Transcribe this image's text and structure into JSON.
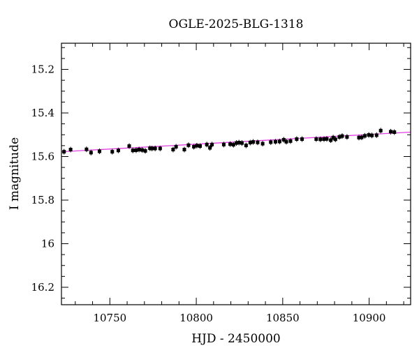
{
  "chart_data": {
    "type": "scatter",
    "title": "OGLE-2025-BLG-1318",
    "xlabel": "HJD - 2450000",
    "ylabel": "I magnitude",
    "xlim": [
      10722,
      10924
    ],
    "ylim": [
      16.28,
      15.08
    ],
    "y_inverted": true,
    "grid": false,
    "x_ticks": [
      10750,
      10800,
      10850,
      10900
    ],
    "x_tick_labels": [
      "10750",
      "10800",
      "10850",
      "10900"
    ],
    "y_ticks": [
      15.2,
      15.4,
      15.6,
      15.8,
      16,
      16.2
    ],
    "y_tick_labels": [
      "15.2",
      "15.4",
      "15.6",
      "15.8",
      "16",
      "16.2"
    ],
    "series": [
      {
        "kind": "points",
        "color": "#000000",
        "x": [
          10723.5,
          10727.3,
          10736.5,
          10739.1,
          10744.0,
          10751.4,
          10754.9,
          10761.2,
          10763.3,
          10765.2,
          10766.9,
          10768.7,
          10770.5,
          10773.2,
          10774.4,
          10776.2,
          10779.1,
          10786.6,
          10788.3,
          10793.1,
          10795.5,
          10798.6,
          10800.3,
          10802.2,
          10806.1,
          10807.9,
          10809.1,
          10815.9,
          10819.6,
          10821.5,
          10823.2,
          10824.7,
          10826.4,
          10828.8,
          10831.2,
          10832.9,
          10835.5,
          10838.4,
          10843.1,
          10845.8,
          10848.2,
          10850.6,
          10852.1,
          10854.5,
          10858.1,
          10861.2,
          10869.4,
          10871.8,
          10873.9,
          10875.5,
          10877.8,
          10879.2,
          10880.5,
          10882.8,
          10884.4,
          10887.2,
          10894.1,
          10895.7,
          10897.5,
          10899.8,
          10901.6,
          10904.3,
          10906.7,
          10912.5,
          10914.6
        ],
        "y": [
          15.578,
          15.568,
          15.567,
          15.582,
          15.576,
          15.578,
          15.572,
          15.552,
          15.572,
          15.571,
          15.568,
          15.57,
          15.574,
          15.562,
          15.563,
          15.563,
          15.563,
          15.568,
          15.555,
          15.568,
          15.548,
          15.555,
          15.55,
          15.552,
          15.545,
          15.56,
          15.545,
          15.545,
          15.543,
          15.546,
          15.538,
          15.536,
          15.538,
          15.549,
          15.536,
          15.533,
          15.535,
          15.541,
          15.534,
          15.532,
          15.531,
          15.523,
          15.532,
          15.529,
          15.52,
          15.52,
          15.52,
          15.521,
          15.52,
          15.519,
          15.525,
          15.513,
          15.521,
          15.51,
          15.506,
          15.51,
          15.513,
          15.512,
          15.505,
          15.501,
          15.503,
          15.502,
          15.481,
          15.486,
          15.488
        ]
      },
      {
        "kind": "line",
        "color": "#e040e0",
        "x": [
          10722,
          10924
        ],
        "y": [
          15.578,
          15.488
        ]
      }
    ]
  }
}
